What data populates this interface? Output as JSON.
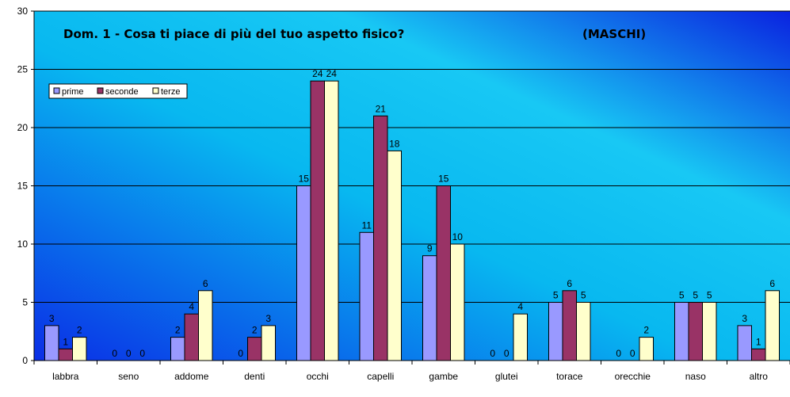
{
  "chart_data": {
    "type": "bar",
    "title": "Dom. 1 - Cosa ti piace di più del tuo aspetto fisico?",
    "subtitle": "(MASCHI)",
    "xlabel": "",
    "ylabel": "",
    "ylim": [
      0,
      30
    ],
    "yticks": [
      "0",
      "5",
      "10",
      "15",
      "20",
      "25",
      "30"
    ],
    "grid": true,
    "legend_position": "top-left",
    "categories": [
      "labbra",
      "seno",
      "addome",
      "denti",
      "occhi",
      "capelli",
      "gambe",
      "glutei",
      "torace",
      "orecchie",
      "naso",
      "altro"
    ],
    "series": [
      {
        "name": "prime",
        "color": "#9999ff",
        "values": [
          3,
          0,
          2,
          0,
          15,
          11,
          9,
          0,
          5,
          0,
          5,
          3
        ]
      },
      {
        "name": "seconde",
        "color": "#993366",
        "values": [
          1,
          0,
          4,
          2,
          24,
          21,
          15,
          0,
          6,
          0,
          5,
          1
        ]
      },
      {
        "name": "terze",
        "color": "#ffffcc",
        "values": [
          2,
          0,
          6,
          3,
          24,
          18,
          10,
          4,
          5,
          2,
          5,
          6
        ]
      }
    ]
  }
}
